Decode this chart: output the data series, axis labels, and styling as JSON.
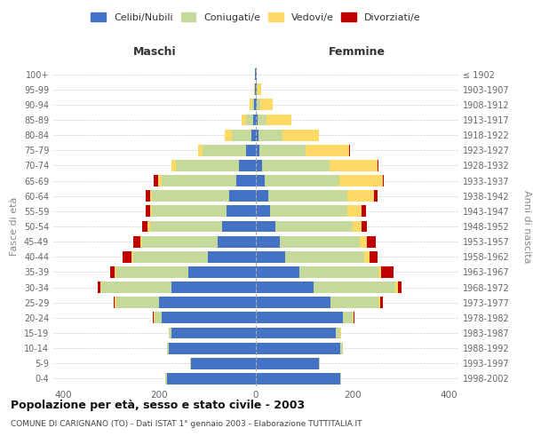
{
  "age_groups": [
    "0-4",
    "5-9",
    "10-14",
    "15-19",
    "20-24",
    "25-29",
    "30-34",
    "35-39",
    "40-44",
    "45-49",
    "50-54",
    "55-59",
    "60-64",
    "65-69",
    "70-74",
    "75-79",
    "80-84",
    "85-89",
    "90-94",
    "95-99",
    "100+"
  ],
  "birth_years": [
    "1998-2002",
    "1993-1997",
    "1988-1992",
    "1983-1987",
    "1978-1982",
    "1973-1977",
    "1968-1972",
    "1963-1967",
    "1958-1962",
    "1953-1957",
    "1948-1952",
    "1943-1947",
    "1938-1942",
    "1933-1937",
    "1928-1932",
    "1923-1927",
    "1918-1922",
    "1913-1917",
    "1908-1912",
    "1903-1907",
    "≤ 1902"
  ],
  "colors": {
    "celibe": "#4472C4",
    "coniugato": "#c5d99b",
    "vedovo": "#FFD966",
    "divorziato": "#C00000"
  },
  "maschi": {
    "celibe": [
      185,
      135,
      180,
      175,
      195,
      200,
      175,
      140,
      100,
      80,
      70,
      60,
      55,
      40,
      35,
      20,
      10,
      5,
      3,
      1,
      1
    ],
    "coniugato": [
      2,
      2,
      5,
      5,
      15,
      90,
      145,
      150,
      155,
      155,
      150,
      155,
      160,
      155,
      130,
      90,
      40,
      15,
      5,
      1,
      0
    ],
    "vedovo": [
      0,
      0,
      0,
      0,
      2,
      2,
      2,
      3,
      3,
      5,
      5,
      5,
      5,
      8,
      10,
      10,
      15,
      10,
      5,
      1,
      0
    ],
    "divorziato": [
      0,
      0,
      0,
      0,
      2,
      2,
      5,
      10,
      18,
      15,
      10,
      8,
      8,
      8,
      0,
      0,
      0,
      0,
      0,
      0,
      0
    ]
  },
  "femmine": {
    "nubile": [
      175,
      130,
      175,
      165,
      180,
      155,
      120,
      90,
      60,
      50,
      40,
      30,
      25,
      18,
      12,
      8,
      5,
      3,
      2,
      1,
      1
    ],
    "coniugata": [
      2,
      2,
      5,
      10,
      20,
      100,
      170,
      165,
      165,
      165,
      160,
      160,
      165,
      155,
      140,
      95,
      50,
      20,
      8,
      2,
      0
    ],
    "vedova": [
      0,
      0,
      0,
      1,
      2,
      3,
      5,
      5,
      10,
      15,
      20,
      30,
      55,
      90,
      100,
      90,
      75,
      50,
      25,
      8,
      1
    ],
    "divorziata": [
      0,
      0,
      0,
      1,
      2,
      5,
      8,
      25,
      18,
      18,
      10,
      8,
      8,
      3,
      2,
      2,
      0,
      0,
      0,
      0,
      0
    ]
  },
  "title": "Popolazione per età, sesso e stato civile - 2003",
  "subtitle": "COMUNE DI CARIGNANO (TO) - Dati ISTAT 1° gennaio 2003 - Elaborazione TUTTITALIA.IT",
  "xlabel_left": "Maschi",
  "xlabel_right": "Femmine",
  "ylabel_left": "Fasce di età",
  "ylabel_right": "Anni di nascita",
  "xlim": 420,
  "legend_labels": [
    "Celibi/Nubili",
    "Coniugati/e",
    "Vedovi/e",
    "Divorziati/e"
  ]
}
